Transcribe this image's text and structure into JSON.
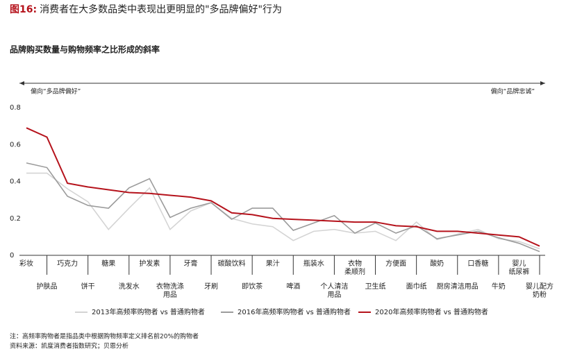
{
  "chart_data": {
    "type": "line",
    "title_prefix": "图16:",
    "title": "消费者在大多数品类中表现出更明显的\"多品牌偏好\"行为",
    "subtitle": "品牌购买数量与购物频率之比形成的斜率",
    "annotation_left": "偏向“多品牌偏好”",
    "annotation_right": "偏向“品牌忠诚”",
    "categories": [
      "彩妆",
      "护肤品",
      "巧克力",
      "饼干",
      "糖果",
      "洗发水",
      "护发素",
      "衣物洗涤\n用品",
      "牙膏",
      "牙刷",
      "碳酸饮料",
      "即饮茶",
      "果汁",
      "啤酒",
      "瓶装水",
      "个人清洁\n用品",
      "衣物\n柔顺剂",
      "卫生纸",
      "方便面",
      "面巾纸",
      "酸奶",
      "厨房清洁用品",
      "口香糖",
      "牛奶",
      "婴儿\n纸尿裤",
      "婴儿配方\n奶粉"
    ],
    "series": [
      {
        "name": "2013年高频率购物者 vs 普通购物者",
        "color": "#d4d4d4",
        "values": [
          0.445,
          0.445,
          0.36,
          0.29,
          0.14,
          0.255,
          0.365,
          0.14,
          0.24,
          0.285,
          0.2,
          0.17,
          0.155,
          0.08,
          0.13,
          0.14,
          0.12,
          0.13,
          0.08,
          0.18,
          0.085,
          0.115,
          0.14,
          0.09,
          0.075,
          0.035
        ]
      },
      {
        "name": "2016年高频率购物者 vs 普通购物者",
        "color": "#9b9b9b",
        "values": [
          0.5,
          0.475,
          0.32,
          0.27,
          0.255,
          0.365,
          0.415,
          0.205,
          0.255,
          0.285,
          0.195,
          0.255,
          0.255,
          0.135,
          0.175,
          0.215,
          0.12,
          0.175,
          0.12,
          0.16,
          0.09,
          0.11,
          0.13,
          0.095,
          0.065,
          0.02
        ]
      },
      {
        "name": "2020年高频率购物者 vs 普通购物者",
        "color": "#b5121b",
        "values": [
          0.69,
          0.64,
          0.39,
          0.37,
          0.355,
          0.34,
          0.335,
          0.325,
          0.315,
          0.295,
          0.23,
          0.22,
          0.2,
          0.195,
          0.19,
          0.185,
          0.18,
          0.18,
          0.16,
          0.155,
          0.13,
          0.13,
          0.12,
          0.11,
          0.1,
          0.05
        ]
      }
    ],
    "ylim": [
      0,
      0.8
    ],
    "yticks": [
      0,
      0.2,
      0.4,
      0.6,
      0.8
    ],
    "notes": [
      "注：高频率购物者是指品类中根据购物频率定义排名前20%的购物者",
      "资料来源：凯度消费者指数研究；贝恩分析"
    ]
  }
}
